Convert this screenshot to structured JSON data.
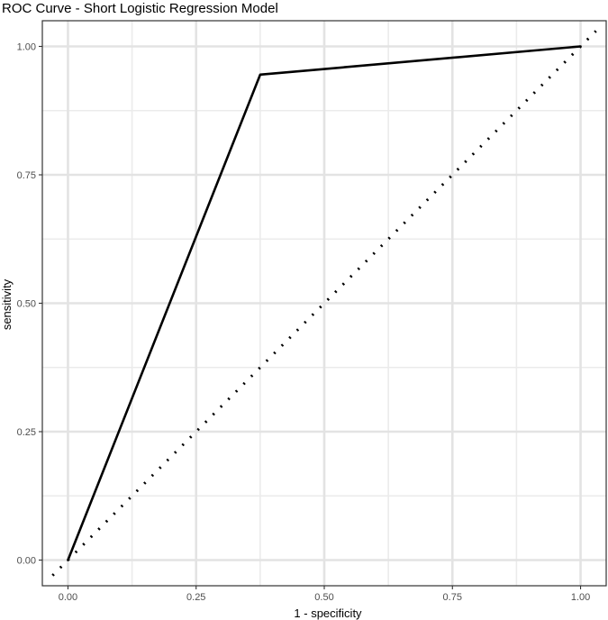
{
  "chart_data": {
    "type": "line",
    "title": "ROC Curve - Short Logistic Regression Model",
    "xlabel": "1 - specificity",
    "ylabel": "sensitivity",
    "xlim": [
      -0.05,
      1.05
    ],
    "ylim": [
      -0.05,
      1.05
    ],
    "x_ticks": [
      0,
      0.25,
      0.5,
      0.75,
      1
    ],
    "y_ticks": [
      0,
      0.25,
      0.5,
      0.75,
      1
    ],
    "x_tick_labels": [
      "0.00",
      "0.25",
      "0.50",
      "0.75",
      "1.00"
    ],
    "y_tick_labels": [
      "0.00",
      "0.25",
      "0.50",
      "0.75",
      "1.00"
    ],
    "grid": true,
    "series": [
      {
        "style": "solid",
        "color": "#000000",
        "x": [
          0,
          0.375,
          1
        ],
        "y": [
          0,
          0.945,
          1
        ]
      },
      {
        "style": "dotted",
        "color": "#000000",
        "x": [
          -0.03,
          1.03
        ],
        "y": [
          -0.03,
          1.03
        ]
      }
    ]
  }
}
